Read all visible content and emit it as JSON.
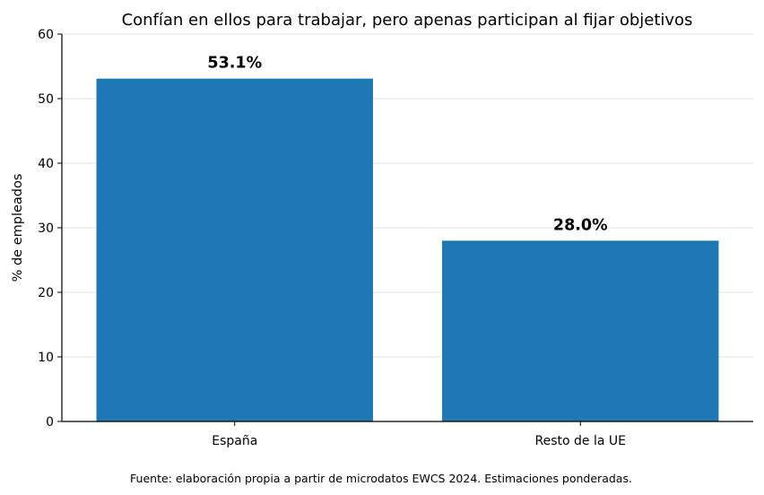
{
  "chart_data": {
    "type": "bar",
    "title": "Confían en ellos para trabajar, pero apenas participan al fijar objetivos",
    "xlabel": "",
    "ylabel": "% de empleados",
    "categories": [
      "España",
      "Resto de la UE"
    ],
    "values": [
      53.1,
      28.0
    ],
    "data_labels": [
      "53.1%",
      "28.0%"
    ],
    "ylim": [
      0,
      60
    ],
    "yticks": [
      0,
      10,
      20,
      30,
      40,
      50,
      60
    ],
    "grid": "horizontal",
    "bar_color": "#1f77b4"
  },
  "footer": {
    "source": "Fuente: elaboración propia a partir de microdatos EWCS 2024. Estimaciones ponderadas."
  }
}
